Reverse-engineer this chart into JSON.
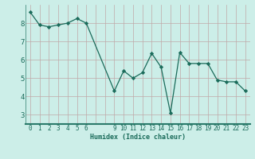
{
  "x": [
    0,
    1,
    2,
    3,
    4,
    5,
    6,
    9,
    10,
    11,
    12,
    13,
    14,
    15,
    16,
    17,
    18,
    19,
    20,
    21,
    22,
    23
  ],
  "y": [
    8.6,
    7.9,
    7.8,
    7.9,
    8.0,
    8.25,
    8.0,
    4.3,
    5.4,
    5.0,
    5.3,
    6.35,
    5.6,
    3.1,
    6.4,
    5.8,
    5.8,
    5.8,
    4.9,
    4.8,
    4.8,
    4.3
  ],
  "xlabel": "Humidex (Indice chaleur)",
  "bg_color": "#cceee8",
  "grid_color": "#c0a8a8",
  "line_color": "#1a6b5a",
  "marker_color": "#1a6b5a",
  "yticks": [
    3,
    4,
    5,
    6,
    7,
    8
  ],
  "ylim": [
    2.5,
    9.0
  ],
  "xlim": [
    -0.5,
    23.5
  ],
  "bottom_bar_color": "#2a7a6a",
  "xlabel_fontsize": 6.0,
  "ytick_fontsize": 6.5,
  "xtick_fontsize": 5.5
}
